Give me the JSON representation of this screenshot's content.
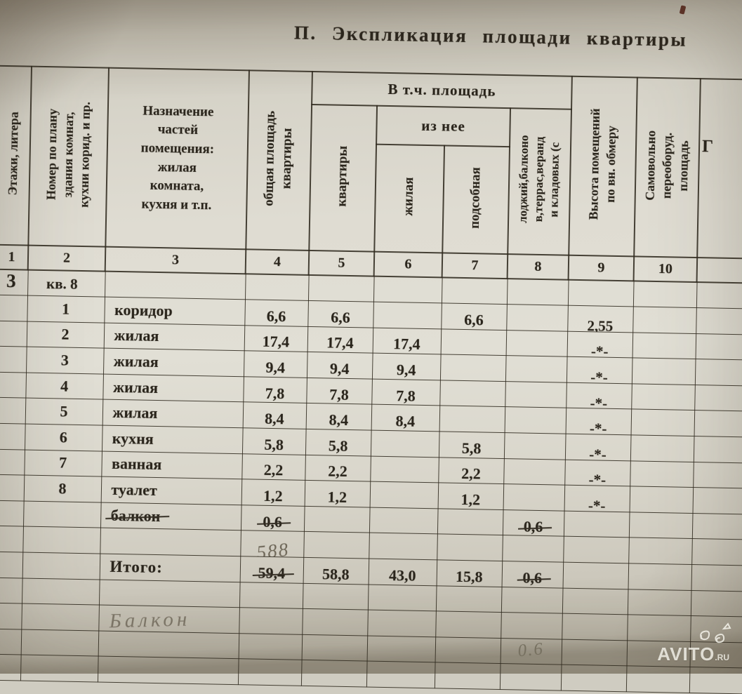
{
  "document": {
    "title": "П. Экспликация  площади  квартиры",
    "watermark": {
      "brand": "AVITO",
      "tld": ".RU",
      "logo_icon": "doodle-scribble-icon"
    }
  },
  "table": {
    "headers": {
      "floors": "Этажи, литера",
      "plan_number": "Номер по плану\nздания комнат,\nкухни корид. и пр.",
      "purpose": "Назначение\nчастей\nпомещения:\nжилая\nкомната,\nкухня и т.п.",
      "total_area": "общая площадь\nквартиры",
      "incl_area_group": "В т.ч. площадь",
      "apartment": "квартиры",
      "of_it_group": "из нее",
      "living": "жилая",
      "auxiliary": "подсобная",
      "balcony_loggia": "лоджий,балконо\nв,террас,веранд\nи кладовых (с",
      "height": "Высота помещений\nпо вн. обмеру",
      "unauthorized": "Самовольно\nпереоборуд.\nплощадь",
      "extra_partial": "Г"
    },
    "column_numbers": [
      "1",
      "2",
      "3",
      "4",
      "5",
      "6",
      "7",
      "8",
      "9",
      "10",
      ""
    ],
    "rows": [
      {
        "c1": {
          "v": "3",
          "cls": "big"
        },
        "c2": {
          "v": "кв. 8",
          "cls": "kv"
        }
      },
      {
        "c2": "1",
        "c3": "коридор",
        "c4": "6,6",
        "c5": "6,6",
        "c7": "6,6",
        "c9": "2,55"
      },
      {
        "c2": "2",
        "c3": "жилая",
        "c4": "17,4",
        "c5": "17,4",
        "c6": "17,4",
        "c9": "-*-"
      },
      {
        "c2": "3",
        "c3": "жилая",
        "c4": "9,4",
        "c5": "9,4",
        "c6": "9,4",
        "c9": "-*-"
      },
      {
        "c2": "4",
        "c3": "жилая",
        "c4": "7,8",
        "c5": "7,8",
        "c6": "7,8",
        "c9": "-*-"
      },
      {
        "c2": "5",
        "c3": "жилая",
        "c4": "8,4",
        "c5": "8,4",
        "c6": "8,4",
        "c9": "-*-"
      },
      {
        "c2": "6",
        "c3": "кухня",
        "c4": "5,8",
        "c5": "5,8",
        "c7": "5,8",
        "c9": "-*-"
      },
      {
        "c2": "7",
        "c3": "ванная",
        "c4": "2,2",
        "c5": "2,2",
        "c7": "2,2",
        "c9": "-*-"
      },
      {
        "c2": "8",
        "c3": "туалет",
        "c4": "1,2",
        "c5": "1,2",
        "c7": "1,2",
        "c9": "-*-"
      },
      {
        "c3": {
          "v": "балкон",
          "cls": "strike"
        },
        "c4": {
          "v": "0,6",
          "cls": "strike"
        },
        "c8": {
          "v": "0,6",
          "cls": "strike"
        }
      },
      {
        "c4": {
          "v": "588",
          "cls": "hand"
        }
      },
      {
        "c3": {
          "v": "Итого:",
          "cls": "itogo"
        },
        "c4": {
          "v": "59,4",
          "cls": "strike"
        },
        "c5": "58,8",
        "c6": "43,0",
        "c7": "15,8",
        "c8": {
          "v": "0,6",
          "cls": "strike"
        }
      },
      {},
      {
        "c3": {
          "v": "Балкон",
          "cls": "cursive"
        }
      },
      {
        "c8": {
          "v": "0.6",
          "cls": "hand-small"
        }
      },
      {}
    ]
  }
}
